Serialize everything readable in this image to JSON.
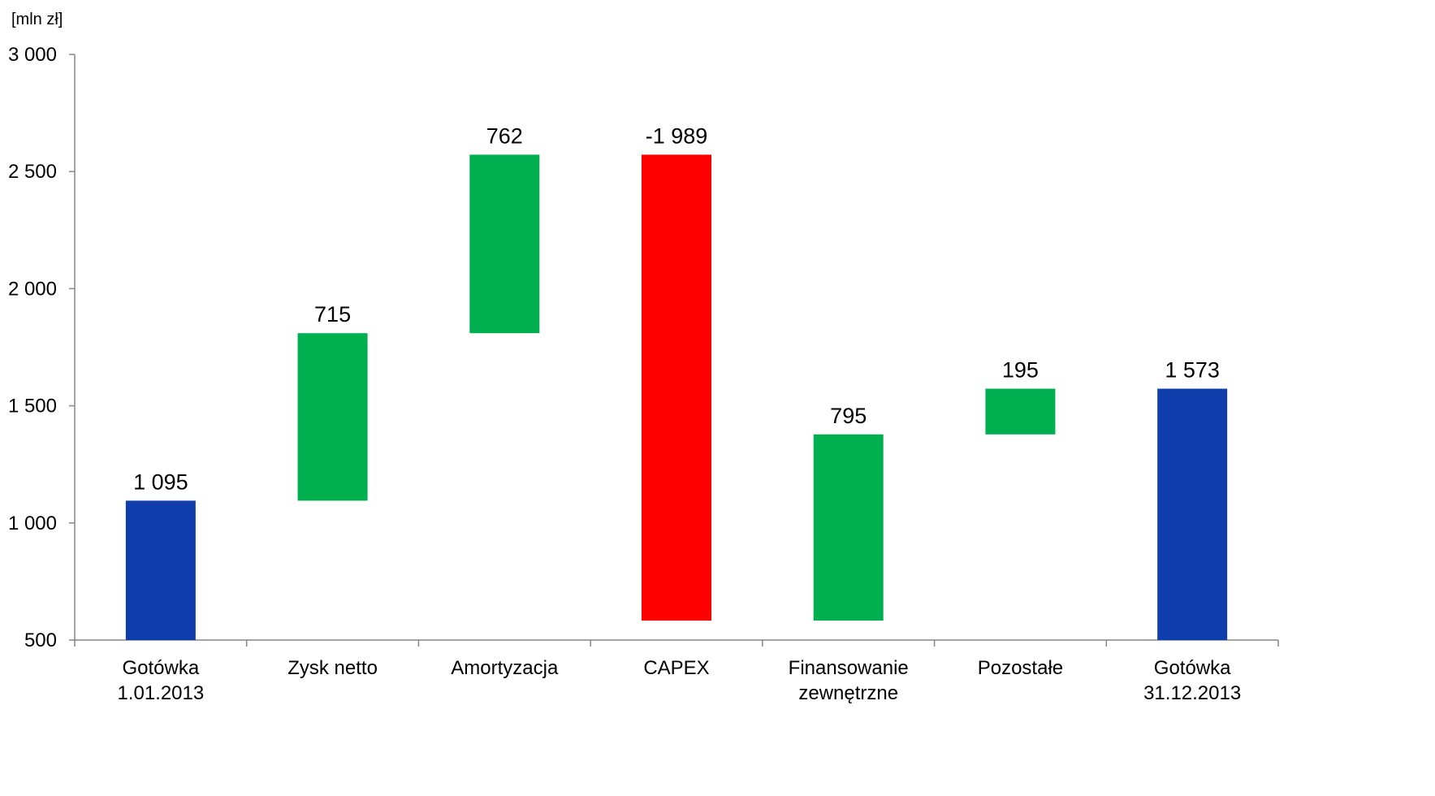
{
  "chart_data": {
    "type": "bar",
    "variant": "waterfall",
    "unit_label": "[mln zł]",
    "categories": [
      [
        "Gotówka",
        "1.01.2013"
      ],
      [
        "Zysk netto"
      ],
      [
        "Amortyzacja"
      ],
      [
        "CAPEX"
      ],
      [
        "Finansowanie",
        "zewnętrzne"
      ],
      [
        "Pozostałe"
      ],
      [
        "Gotówka",
        "31.12.2013"
      ]
    ],
    "bars": [
      {
        "start": 500,
        "end": 1095,
        "label": "1 095",
        "color": "#0f3dab"
      },
      {
        "start": 1095,
        "end": 1810,
        "label": "715",
        "color": "#00b050"
      },
      {
        "start": 1810,
        "end": 2572,
        "label": "762",
        "color": "#00b050"
      },
      {
        "start": 2572,
        "end": 583,
        "label": "-1 989",
        "color": "#ff0000"
      },
      {
        "start": 583,
        "end": 1378,
        "label": "795",
        "color": "#00b050"
      },
      {
        "start": 1378,
        "end": 1573,
        "label": "195",
        "color": "#00b050"
      },
      {
        "start": 500,
        "end": 1573,
        "label": "1 573",
        "color": "#0f3dab"
      }
    ],
    "ylim": [
      500,
      3000
    ],
    "yticks": [
      500,
      1000,
      1500,
      2000,
      2500,
      3000
    ],
    "ytick_labels": [
      "500",
      "1 000",
      "1 500",
      "2 000",
      "2 500",
      "3 000"
    ],
    "grid": false,
    "legend": "none"
  }
}
